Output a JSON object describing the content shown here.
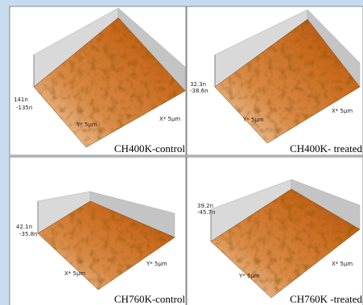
{
  "panels": [
    {
      "caption": "CH400K-control",
      "z_max": "141n",
      "z_min": "-135n",
      "axis_labels": [
        "Y* 5µm",
        "X* 5µm"
      ]
    },
    {
      "caption": "CH400K- treated",
      "z_max": "32.3n",
      "z_min": "-38.6n",
      "axis_labels": [
        "Y* 5µm",
        "X* 5µm"
      ]
    },
    {
      "caption": "CH760K-control",
      "z_max": "42.1n",
      "z_min": "-35.8n",
      "axis_labels": [
        "X* 5µm",
        "Y* 5µm"
      ]
    },
    {
      "caption": "CH760K -treated",
      "z_max": "39.2n",
      "z_min": "-45.7n",
      "axis_labels": [
        "Y* 5µm",
        "X* 5µm"
      ]
    }
  ]
}
